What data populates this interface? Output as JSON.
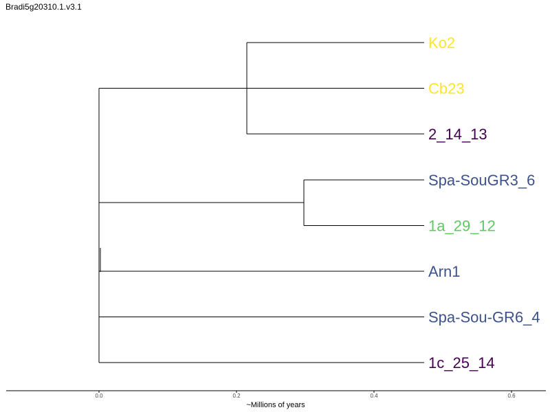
{
  "title": "Bradi5g20310.1.v3.1",
  "axis": {
    "label": "~Millions of years",
    "ticks": [
      0.0,
      0.2,
      0.4,
      0.6
    ],
    "tick_labels": [
      "0.0",
      "0.2",
      "0.4",
      "0.6"
    ],
    "range": [
      -0.135,
      0.65
    ]
  },
  "tree": {
    "leaves": [
      {
        "name": "Ko2",
        "color": "#fde725"
      },
      {
        "name": "Cb23",
        "color": "#fde725"
      },
      {
        "name": "2_14_13",
        "color": "#440154"
      },
      {
        "name": "Spa-SouGR3_6",
        "color": "#3b528b"
      },
      {
        "name": "1a_29_12",
        "color": "#5ec962"
      },
      {
        "name": "Arn1",
        "color": "#3b528b"
      },
      {
        "name": "Spa-Sou-GR6_4",
        "color": "#3b528b"
      },
      {
        "name": "1c_25_14",
        "color": "#440154"
      }
    ],
    "leaf_depth": 0.473,
    "internal_nodes": [
      {
        "depth": 0.215,
        "children": [
          0,
          2
        ]
      },
      {
        "depth": 0.298,
        "children": [
          3,
          4
        ]
      },
      {
        "depth": 0.0,
        "children": [
          1,
          7
        ]
      }
    ]
  }
}
